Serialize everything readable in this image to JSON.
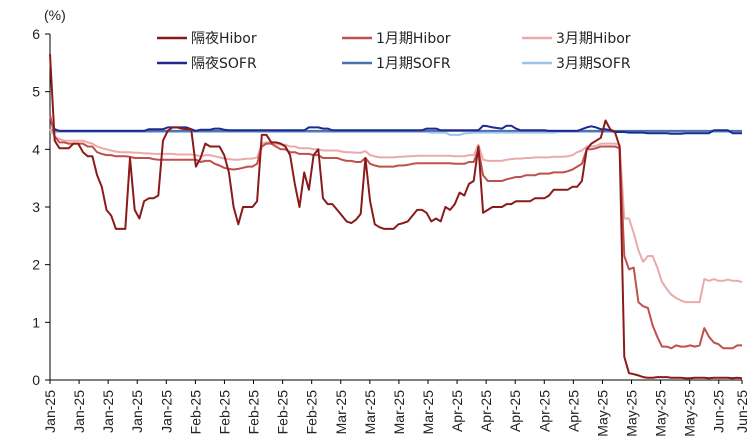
{
  "chart_data": {
    "type": "line",
    "unit_label": "(%)",
    "ylim": [
      0,
      6
    ],
    "y_ticks": [
      0,
      1,
      2,
      3,
      4,
      5,
      6
    ],
    "x_count": 120,
    "x_tick_positions": [
      0,
      5,
      10,
      15,
      20,
      25,
      30,
      35,
      40,
      45,
      50,
      55,
      60,
      65,
      70,
      75,
      80,
      85,
      90,
      95,
      100,
      105,
      110,
      115,
      119
    ],
    "x_tick_labels": [
      "Jan-25",
      "Jan-25",
      "Jan-25",
      "Jan-25",
      "Jan-25",
      "Feb-25",
      "Feb-25",
      "Feb-25",
      "Feb-25",
      "Feb-25",
      "Mar-25",
      "Mar-25",
      "Mar-25",
      "Mar-25",
      "Apr-25",
      "Apr-25",
      "Apr-25",
      "Apr-25",
      "Apr-25",
      "May-25",
      "May-25",
      "May-25",
      "May-25",
      "Jun-25",
      "Jun-25"
    ],
    "grid": false,
    "legend_position": "top",
    "series": [
      {
        "name": "隔夜Hibor",
        "color": "#8B1A1A",
        "values": [
          5.65,
          4.15,
          4.02,
          4.02,
          4.02,
          4.1,
          4.1,
          3.95,
          3.88,
          3.88,
          3.55,
          3.35,
          2.95,
          2.85,
          2.62,
          2.62,
          2.62,
          3.85,
          2.95,
          2.8,
          3.1,
          3.15,
          3.15,
          3.2,
          4.15,
          4.32,
          4.38,
          4.38,
          4.36,
          4.35,
          4.35,
          3.7,
          3.85,
          4.1,
          4.05,
          4.05,
          4.05,
          3.9,
          3.6,
          3.0,
          2.7,
          3.0,
          3.0,
          3.0,
          3.1,
          4.25,
          4.25,
          4.12,
          4.12,
          4.1,
          4.05,
          3.9,
          3.4,
          3.0,
          3.6,
          3.3,
          3.9,
          4.0,
          3.15,
          3.05,
          3.05,
          2.95,
          2.85,
          2.75,
          2.72,
          2.78,
          2.88,
          3.85,
          3.1,
          2.7,
          2.65,
          2.62,
          2.62,
          2.62,
          2.7,
          2.72,
          2.75,
          2.85,
          2.95,
          2.95,
          2.9,
          2.75,
          2.8,
          2.75,
          3.0,
          2.95,
          3.05,
          3.25,
          3.2,
          3.4,
          3.45,
          4.05,
          2.9,
          2.95,
          3.0,
          3.0,
          3.0,
          3.05,
          3.05,
          3.1,
          3.1,
          3.1,
          3.1,
          3.15,
          3.15,
          3.15,
          3.2,
          3.3,
          3.3,
          3.3,
          3.3,
          3.35,
          3.35,
          3.45,
          4.0,
          4.1,
          4.15,
          4.2,
          4.5,
          4.35
        ],
        "tail": [
          4.3,
          4.05,
          0.4,
          0.12,
          0.1,
          0.08,
          0.05,
          0.04,
          0.04,
          0.05,
          0.05,
          0.05,
          0.04,
          0.04,
          0.04,
          0.03,
          0.03,
          0.04,
          0.04,
          0.04,
          0.03,
          0.04,
          0.04,
          0.04,
          0.04,
          0.03,
          0.04,
          0.03
        ]
      },
      {
        "name": "1月期Hibor",
        "color": "#C0504D",
        "values": [
          4.6,
          4.22,
          4.12,
          4.12,
          4.1,
          4.1,
          4.1,
          4.1,
          4.05,
          4.05,
          3.95,
          3.92,
          3.9,
          3.9,
          3.88,
          3.88,
          3.88,
          3.87,
          3.85,
          3.85,
          3.85,
          3.85,
          3.83,
          3.82,
          3.82,
          3.82,
          3.82,
          3.82,
          3.82,
          3.82,
          3.82,
          3.82,
          3.78,
          3.8,
          3.8,
          3.75,
          3.72,
          3.68,
          3.66,
          3.65,
          3.66,
          3.68,
          3.7,
          3.7,
          3.75,
          4.05,
          4.1,
          4.1,
          4.05,
          4.0,
          4.0,
          3.95,
          3.95,
          3.92,
          3.92,
          3.92,
          3.9,
          3.9,
          3.85,
          3.85,
          3.85,
          3.85,
          3.82,
          3.8,
          3.8,
          3.78,
          3.78,
          3.85,
          3.75,
          3.72,
          3.7,
          3.7,
          3.7,
          3.7,
          3.72,
          3.72,
          3.73,
          3.75,
          3.76,
          3.76,
          3.76,
          3.76,
          3.76,
          3.76,
          3.76,
          3.76,
          3.75,
          3.75,
          3.75,
          3.78,
          3.78,
          4.0,
          3.55,
          3.45,
          3.45,
          3.45,
          3.45,
          3.48,
          3.5,
          3.52,
          3.52,
          3.55,
          3.55,
          3.55,
          3.58,
          3.58,
          3.58,
          3.6,
          3.6,
          3.6,
          3.62,
          3.65,
          3.7,
          3.75,
          4.0,
          4.0,
          4.02,
          4.05,
          4.05,
          4.05
        ],
        "tail": [
          4.05,
          4.02,
          2.15,
          1.92,
          1.95,
          1.35,
          1.28,
          1.25,
          0.95,
          0.75,
          0.58,
          0.58,
          0.55,
          0.6,
          0.58,
          0.58,
          0.6,
          0.58,
          0.6,
          0.9,
          0.75,
          0.65,
          0.62,
          0.55,
          0.55,
          0.55,
          0.6,
          0.6
        ]
      },
      {
        "name": "3月期Hibor",
        "color": "#EBAAAA",
        "values": [
          4.35,
          4.22,
          4.18,
          4.15,
          4.15,
          4.15,
          4.15,
          4.15,
          4.12,
          4.1,
          4.05,
          4.02,
          4.0,
          3.98,
          3.96,
          3.95,
          3.95,
          3.95,
          3.94,
          3.94,
          3.93,
          3.93,
          3.92,
          3.92,
          3.92,
          3.92,
          3.92,
          3.91,
          3.91,
          3.91,
          3.91,
          3.9,
          3.88,
          3.9,
          3.9,
          3.88,
          3.86,
          3.84,
          3.83,
          3.82,
          3.82,
          3.83,
          3.84,
          3.84,
          3.86,
          4.1,
          4.12,
          4.12,
          4.1,
          4.08,
          4.08,
          4.05,
          4.05,
          4.02,
          4.02,
          4.02,
          4.0,
          4.0,
          3.98,
          3.98,
          3.98,
          3.98,
          3.96,
          3.95,
          3.95,
          3.94,
          3.94,
          3.97,
          3.9,
          3.88,
          3.86,
          3.86,
          3.86,
          3.86,
          3.87,
          3.87,
          3.88,
          3.88,
          3.89,
          3.89,
          3.89,
          3.89,
          3.89,
          3.89,
          3.89,
          3.89,
          3.88,
          3.88,
          3.88,
          3.9,
          3.9,
          4.08,
          3.82,
          3.8,
          3.8,
          3.8,
          3.8,
          3.82,
          3.83,
          3.84,
          3.84,
          3.85,
          3.85,
          3.86,
          3.86,
          3.86,
          3.86,
          3.87,
          3.87,
          3.87,
          3.88,
          3.9,
          3.95,
          3.98,
          4.05,
          4.05,
          4.06,
          4.1,
          4.1,
          4.1
        ],
        "tail": [
          4.1,
          4.08,
          2.8,
          2.8,
          2.55,
          2.25,
          2.05,
          2.15,
          2.15,
          1.95,
          1.7,
          1.58,
          1.48,
          1.42,
          1.38,
          1.35,
          1.35,
          1.35,
          1.35,
          1.75,
          1.72,
          1.75,
          1.72,
          1.72,
          1.74,
          1.72,
          1.72,
          1.7
        ]
      },
      {
        "name": "隔夜SOFR",
        "color": "#1F2A8C",
        "values": [
          4.5,
          4.35,
          4.32,
          4.32,
          4.32,
          4.32,
          4.32,
          4.32,
          4.32,
          4.32,
          4.32,
          4.32,
          4.32,
          4.32,
          4.32,
          4.32,
          4.32,
          4.32,
          4.32,
          4.32,
          4.32,
          4.35,
          4.35,
          4.35,
          4.35,
          4.38,
          4.38,
          4.38,
          4.38,
          4.38,
          4.35,
          4.32,
          4.34,
          4.34,
          4.34,
          4.36,
          4.36,
          4.34,
          4.33,
          4.33,
          4.33,
          4.33,
          4.33,
          4.33,
          4.33,
          4.33,
          4.33,
          4.33,
          4.33,
          4.33,
          4.33,
          4.33,
          4.33,
          4.33,
          4.33,
          4.38,
          4.38,
          4.38,
          4.36,
          4.36,
          4.33,
          4.33,
          4.33,
          4.33,
          4.33,
          4.33,
          4.33,
          4.33,
          4.33,
          4.33,
          4.33,
          4.33,
          4.33,
          4.33,
          4.33,
          4.33,
          4.33,
          4.33,
          4.33,
          4.33,
          4.36,
          4.36,
          4.36,
          4.33,
          4.33,
          4.33,
          4.33,
          4.33,
          4.33,
          4.33,
          4.33,
          4.33,
          4.41,
          4.4,
          4.38,
          4.37,
          4.36,
          4.41,
          4.41,
          4.36,
          4.33,
          4.33,
          4.33,
          4.33,
          4.33,
          4.33,
          4.32,
          4.32,
          4.32,
          4.32,
          4.32,
          4.32,
          4.32,
          4.35,
          4.38,
          4.4,
          4.38,
          4.35,
          4.35,
          4.33
        ],
        "tail": [
          4.3,
          4.3,
          4.3,
          4.29,
          4.29,
          4.29,
          4.29,
          4.28,
          4.28,
          4.28,
          4.28,
          4.28,
          4.27,
          4.27,
          4.27,
          4.28,
          4.28,
          4.28,
          4.28,
          4.28,
          4.28,
          4.33,
          4.33,
          4.33,
          4.33,
          4.28,
          4.28,
          4.28
        ]
      },
      {
        "name": "1月期SOFR",
        "color": "#4A6FB3",
        "values": [
          4.33,
          4.33,
          4.32,
          4.32,
          4.32,
          4.32,
          4.32,
          4.32,
          4.32,
          4.32,
          4.32,
          4.32,
          4.32,
          4.32,
          4.32,
          4.32,
          4.32,
          4.32,
          4.32,
          4.32,
          4.32,
          4.32,
          4.32,
          4.32,
          4.32,
          4.32,
          4.32,
          4.32,
          4.32,
          4.32,
          4.32,
          4.32,
          4.32,
          4.32,
          4.32,
          4.32,
          4.32,
          4.32,
          4.32,
          4.32,
          4.32,
          4.32,
          4.32,
          4.32,
          4.32,
          4.32,
          4.32,
          4.32,
          4.32,
          4.32,
          4.32,
          4.32,
          4.32,
          4.32,
          4.32,
          4.32,
          4.32,
          4.32,
          4.32,
          4.32,
          4.32,
          4.32,
          4.32,
          4.32,
          4.32,
          4.32,
          4.32,
          4.32,
          4.32,
          4.32,
          4.32,
          4.32,
          4.32,
          4.32,
          4.32,
          4.32,
          4.32,
          4.32,
          4.32,
          4.32,
          4.32,
          4.32,
          4.32,
          4.32,
          4.32,
          4.32,
          4.32,
          4.32,
          4.32,
          4.32,
          4.32,
          4.32,
          4.32,
          4.32,
          4.32,
          4.32,
          4.32,
          4.32,
          4.32,
          4.32,
          4.32,
          4.32,
          4.32,
          4.32,
          4.32,
          4.32,
          4.32,
          4.32,
          4.32,
          4.32,
          4.32,
          4.32,
          4.32,
          4.32,
          4.32,
          4.32,
          4.32,
          4.32,
          4.32,
          4.32
        ],
        "tail": [
          4.32,
          4.32,
          4.32,
          4.32,
          4.32,
          4.32,
          4.32,
          4.32,
          4.32,
          4.32,
          4.32,
          4.32,
          4.32,
          4.32,
          4.32,
          4.32,
          4.32,
          4.32,
          4.32,
          4.32,
          4.32,
          4.32,
          4.32,
          4.32,
          4.32,
          4.32,
          4.32,
          4.32
        ]
      },
      {
        "name": "3月期SOFR",
        "color": "#9DC3E6",
        "values": [
          4.3,
          4.3,
          4.3,
          4.3,
          4.3,
          4.3,
          4.3,
          4.3,
          4.3,
          4.3,
          4.3,
          4.3,
          4.3,
          4.3,
          4.3,
          4.3,
          4.3,
          4.3,
          4.3,
          4.3,
          4.3,
          4.3,
          4.3,
          4.3,
          4.3,
          4.3,
          4.3,
          4.3,
          4.3,
          4.3,
          4.3,
          4.3,
          4.3,
          4.3,
          4.3,
          4.3,
          4.3,
          4.3,
          4.3,
          4.3,
          4.3,
          4.3,
          4.3,
          4.3,
          4.3,
          4.3,
          4.3,
          4.3,
          4.3,
          4.3,
          4.3,
          4.3,
          4.3,
          4.3,
          4.3,
          4.3,
          4.3,
          4.3,
          4.3,
          4.3,
          4.3,
          4.3,
          4.3,
          4.3,
          4.3,
          4.3,
          4.3,
          4.3,
          4.3,
          4.3,
          4.3,
          4.3,
          4.3,
          4.3,
          4.3,
          4.3,
          4.3,
          4.3,
          4.3,
          4.3,
          4.3,
          4.29,
          4.29,
          4.29,
          4.29,
          4.25,
          4.25,
          4.25,
          4.28,
          4.28,
          4.29,
          4.29,
          4.29,
          4.29,
          4.29,
          4.29,
          4.29,
          4.29,
          4.29,
          4.29,
          4.29,
          4.29,
          4.29,
          4.29,
          4.29,
          4.29,
          4.29,
          4.29,
          4.3,
          4.3,
          4.3,
          4.3,
          4.3,
          4.3,
          4.3,
          4.3,
          4.3,
          4.3,
          4.3,
          4.3
        ],
        "tail": [
          4.3,
          4.3,
          4.3,
          4.3,
          4.3,
          4.3,
          4.3,
          4.3,
          4.3,
          4.3,
          4.3,
          4.3,
          4.3,
          4.3,
          4.3,
          4.3,
          4.3,
          4.3,
          4.3,
          4.3,
          4.3,
          4.3,
          4.3,
          4.3,
          4.3,
          4.3,
          4.3,
          4.3
        ]
      }
    ]
  }
}
